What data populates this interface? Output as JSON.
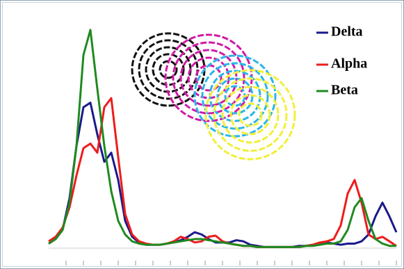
{
  "chart_data": {
    "type": "line",
    "x": [
      0,
      2,
      4,
      6,
      8,
      10,
      12,
      14,
      16,
      18,
      20,
      22,
      24,
      26,
      28,
      30,
      32,
      34,
      36,
      38,
      40,
      42,
      44,
      46,
      48,
      50,
      52,
      54,
      56,
      58,
      60,
      62,
      64,
      66,
      68,
      70,
      72,
      74,
      76,
      78,
      80,
      82,
      84,
      86,
      88,
      90,
      92,
      94,
      96,
      98,
      100
    ],
    "xlim": [
      0,
      100
    ],
    "xticks": [
      5,
      10,
      15,
      20,
      25,
      30,
      35,
      40,
      45,
      50,
      55,
      60,
      65,
      70,
      75,
      80,
      85,
      90,
      95,
      100
    ],
    "ylim": [
      0,
      100
    ],
    "legend": "top-right",
    "series": [
      {
        "name": "Delta",
        "color": "#1a1a8c",
        "values": [
          2,
          4,
          8,
          22,
          45,
          62,
          64,
          50,
          38,
          42,
          30,
          12,
          5,
          2.5,
          1.5,
          1.5,
          1.5,
          2,
          2.5,
          3.5,
          5,
          7,
          6,
          4,
          2.5,
          2.5,
          2.5,
          3.5,
          3,
          1.5,
          1,
          0.5,
          0.5,
          0.5,
          0.5,
          0.5,
          1,
          1,
          1.5,
          2,
          2.5,
          2,
          1.5,
          2,
          2,
          3,
          6,
          14,
          20,
          14,
          7
        ]
      },
      {
        "name": "Alpha",
        "color": "#ee1c1c",
        "values": [
          3,
          5,
          9,
          18,
          32,
          44,
          46,
          42,
          62,
          66,
          40,
          15,
          6,
          3,
          2,
          1.5,
          1.5,
          2,
          3,
          5,
          4,
          2.5,
          3,
          5,
          5.5,
          3,
          2,
          1.5,
          1,
          1,
          0.5,
          0.5,
          0.5,
          0.5,
          0.5,
          0.5,
          0.5,
          1,
          1.5,
          2.5,
          3,
          4,
          10,
          24,
          30,
          20,
          6,
          4,
          5,
          3,
          1
        ]
      },
      {
        "name": "Beta",
        "color": "#1f8a1f",
        "values": [
          2,
          4,
          8,
          20,
          45,
          85,
          96,
          70,
          45,
          25,
          12,
          6,
          3,
          2,
          1.5,
          1.5,
          1.5,
          2,
          2.5,
          3,
          3.5,
          4,
          4,
          3.5,
          3,
          2.5,
          2,
          1.5,
          1,
          1,
          0.5,
          0.5,
          0.5,
          0.5,
          0.5,
          0.5,
          0.5,
          1,
          1,
          1.5,
          2,
          2,
          3,
          8,
          18,
          22,
          12,
          4,
          2,
          1,
          1
        ]
      }
    ]
  }
}
